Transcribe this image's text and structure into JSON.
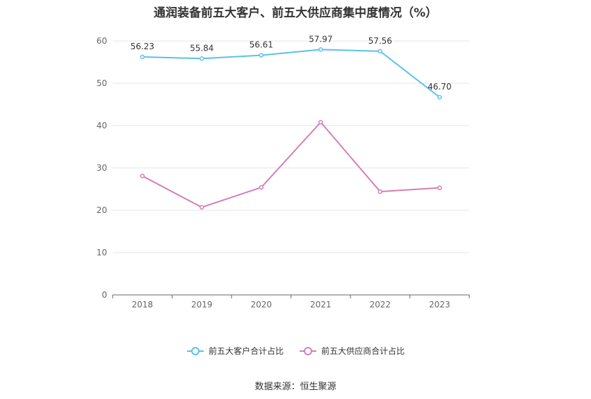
{
  "chart_data": {
    "type": "line",
    "title": "通润装备前五大客户、前五大供应商集中度情况（%）",
    "categories": [
      "2018",
      "2019",
      "2020",
      "2021",
      "2022",
      "2023"
    ],
    "ylim": [
      0,
      60
    ],
    "yticks": [
      "0",
      "10",
      "20",
      "30",
      "40",
      "50",
      "60"
    ],
    "grid": true,
    "legend_position": "bottom",
    "series": [
      {
        "name": "前五大客户合计占比",
        "color": "#5bc0eb",
        "values": [
          56.23,
          55.84,
          56.61,
          57.97,
          57.56,
          46.7
        ],
        "labels": [
          "56.23",
          "55.84",
          "56.61",
          "57.97",
          "57.56",
          "46.70"
        ]
      },
      {
        "name": "前五大供应商合计占比",
        "color": "#d57db8",
        "values": [
          28.1,
          20.7,
          25.4,
          40.8,
          24.4,
          25.3
        ],
        "labels": []
      }
    ]
  },
  "source": "数据来源：恒生聚源"
}
